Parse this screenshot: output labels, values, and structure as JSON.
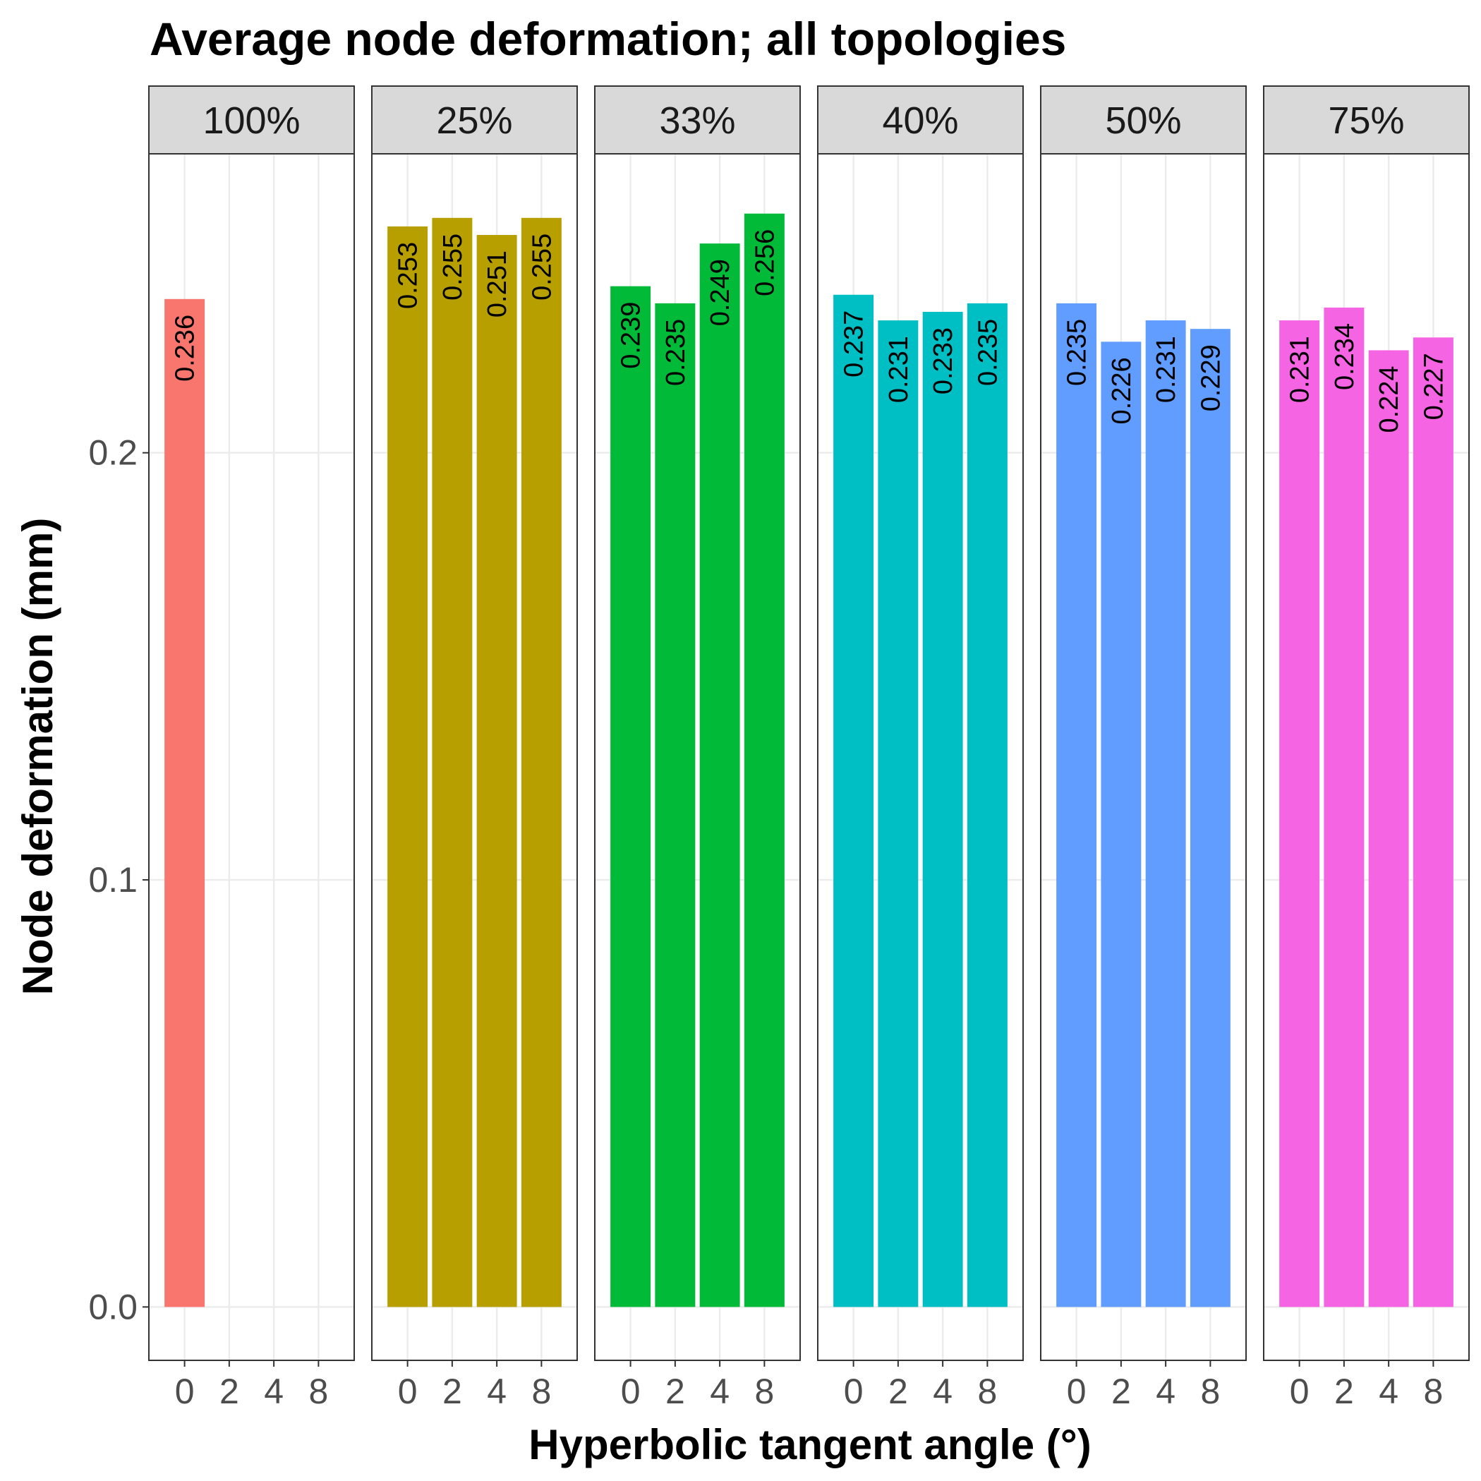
{
  "chart_data": {
    "type": "bar",
    "title": "Average node deformation; all topologies",
    "xlabel": "Hyperbolic tangent angle (°)",
    "ylabel": "Node deformation (mm)",
    "ylim": [
      -0.0125,
      0.27
    ],
    "y_ticks": [
      0.0,
      0.1,
      0.2
    ],
    "y_tick_labels": [
      "0.0",
      "0.1",
      "0.2"
    ],
    "categories": [
      "0",
      "2",
      "4",
      "8"
    ],
    "grid": true,
    "legend": "none",
    "facets": [
      {
        "label": "100%",
        "color": "#F8766D",
        "values": [
          0.236,
          null,
          null,
          null
        ],
        "labels": [
          "0.236",
          "",
          "",
          ""
        ]
      },
      {
        "label": "25%",
        "color": "#B79F00",
        "values": [
          0.253,
          0.255,
          0.251,
          0.255
        ],
        "labels": [
          "0.253",
          "0.255",
          "0.251",
          "0.255"
        ]
      },
      {
        "label": "33%",
        "color": "#00BA38",
        "values": [
          0.239,
          0.235,
          0.249,
          0.256
        ],
        "labels": [
          "0.239",
          "0.235",
          "0.249",
          "0.256"
        ]
      },
      {
        "label": "40%",
        "color": "#00BFC4",
        "values": [
          0.237,
          0.231,
          0.233,
          0.235
        ],
        "labels": [
          "0.237",
          "0.231",
          "0.233",
          "0.235"
        ]
      },
      {
        "label": "50%",
        "color": "#619CFF",
        "values": [
          0.235,
          0.226,
          0.231,
          0.229
        ],
        "labels": [
          "0.235",
          "0.226",
          "0.231",
          "0.229"
        ]
      },
      {
        "label": "75%",
        "color": "#F564E3",
        "values": [
          0.231,
          0.234,
          0.224,
          0.227
        ],
        "labels": [
          "0.231",
          "0.234",
          "0.224",
          "0.227"
        ]
      }
    ]
  }
}
